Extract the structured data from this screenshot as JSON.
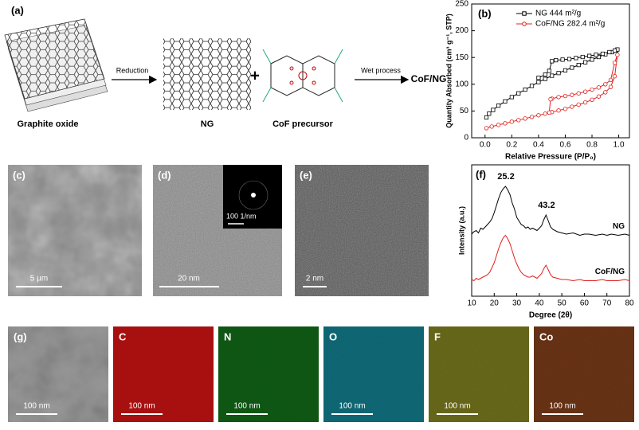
{
  "scheme": {
    "label": "(a)",
    "reactant": "Graphite oxide",
    "step1": "Reduction",
    "intermediate": "NG",
    "plus": "+",
    "precursor": "CoF precursor",
    "step2": "Wet process",
    "product": "CoF/NG"
  },
  "micrographs": [
    {
      "label": "(c)",
      "scale": "5 µm"
    },
    {
      "label": "(d)",
      "scale": "20 nm",
      "inset_scale": "100 1/nm"
    },
    {
      "label": "(e)",
      "scale": "2 nm"
    }
  ],
  "eds_maps": [
    {
      "label": "(g)",
      "scale": "100 nm"
    },
    {
      "label": "C",
      "scale": "100 nm"
    },
    {
      "label": "N",
      "scale": "100 nm"
    },
    {
      "label": "O",
      "scale": "100 nm"
    },
    {
      "label": "F",
      "scale": "100 nm"
    },
    {
      "label": "Co",
      "scale": "100 nm"
    }
  ],
  "chart_data": [
    {
      "type": "line",
      "panel_label": "(b)",
      "xlabel": "Relative Pressure (P/P₀)",
      "ylabel": "Quantity Absorbed (cm³ g⁻¹, STP)",
      "xlim": [
        -0.1,
        1.08
      ],
      "ylim": [
        0,
        250
      ],
      "xticks": [
        {
          "value": 0,
          "label": "0.0"
        },
        {
          "value": 0.2,
          "label": "0.2"
        },
        {
          "value": 0.4,
          "label": "0.4"
        },
        {
          "value": 0.6,
          "label": "0.6"
        },
        {
          "value": 0.8,
          "label": "0.8"
        },
        {
          "value": 1,
          "label": "1.0"
        }
      ],
      "yticks": [
        0,
        50,
        100,
        150,
        200,
        250
      ],
      "legend": "upper right",
      "series": [
        {
          "name": "NG 444 m²/g",
          "color": "#000000",
          "marker": "square",
          "x": [
            0.01,
            0.03,
            0.06,
            0.1,
            0.15,
            0.2,
            0.25,
            0.3,
            0.35,
            0.4,
            0.45,
            0.5,
            0.55,
            0.6,
            0.65,
            0.7,
            0.75,
            0.8,
            0.85,
            0.9,
            0.95,
            0.98,
            0.99,
            0.97,
            0.93,
            0.88,
            0.83,
            0.78,
            0.73,
            0.68,
            0.63,
            0.58,
            0.53,
            0.5,
            0.48,
            0.45,
            0.4
          ],
          "values": [
            38,
            45,
            52,
            60,
            68,
            76,
            83,
            90,
            97,
            104,
            110,
            116,
            121,
            126,
            131,
            136,
            141,
            146,
            151,
            156,
            160,
            163,
            165,
            163,
            160,
            157,
            155,
            153,
            151,
            149,
            147,
            146,
            145,
            143,
            125,
            118,
            112
          ]
        },
        {
          "name": "CoF/NG 282.4 m²/g",
          "color": "#e0201b",
          "marker": "circle",
          "x": [
            0.01,
            0.05,
            0.1,
            0.15,
            0.2,
            0.25,
            0.3,
            0.35,
            0.4,
            0.45,
            0.5,
            0.55,
            0.6,
            0.65,
            0.7,
            0.75,
            0.8,
            0.85,
            0.9,
            0.94,
            0.97,
            0.99,
            0.97,
            0.94,
            0.9,
            0.85,
            0.8,
            0.75,
            0.7,
            0.65,
            0.6,
            0.55,
            0.5,
            0.49,
            0.48
          ],
          "values": [
            18,
            21,
            24,
            27,
            30,
            33,
            36,
            39,
            42,
            45,
            48,
            51,
            54,
            58,
            62,
            66,
            71,
            77,
            85,
            95,
            115,
            155,
            140,
            108,
            100,
            94,
            90,
            86,
            83,
            80,
            78,
            76,
            73,
            72,
            47
          ]
        }
      ]
    },
    {
      "type": "line",
      "panel_label": "(f)",
      "xlabel": "Degree (2θ)",
      "ylabel": "Intensity (a.u.)",
      "xlim": [
        10,
        80
      ],
      "ylim": [
        0,
        110
      ],
      "xticks": [
        10,
        20,
        30,
        40,
        50,
        60,
        70,
        80
      ],
      "legend": "inline",
      "annotations": [
        {
          "text": "25.2",
          "x": 25.2
        },
        {
          "text": "43.2",
          "x": 43.2
        }
      ],
      "x": [
        10,
        11,
        12,
        13,
        14,
        15,
        16,
        17,
        18,
        19,
        20,
        21,
        22,
        23,
        24,
        25,
        26,
        27,
        28,
        29,
        30,
        31,
        32,
        33,
        34,
        35,
        36,
        37,
        38,
        39,
        40,
        41,
        42,
        43,
        44,
        45,
        46,
        48,
        50,
        52,
        55,
        58,
        60,
        62,
        65,
        68,
        70,
        72,
        75,
        78,
        80
      ],
      "series": [
        {
          "name": "NG",
          "color": "#000000",
          "values": [
            52,
            54,
            55,
            53,
            57,
            56,
            58,
            60,
            62,
            65,
            70,
            76,
            82,
            87,
            90,
            92,
            89,
            85,
            78,
            73,
            66,
            63,
            60,
            59,
            57,
            58,
            56,
            57,
            56,
            55,
            57,
            59,
            64,
            68,
            63,
            58,
            56,
            54,
            53,
            52,
            53,
            51,
            52,
            52,
            51,
            52,
            51,
            52,
            51,
            52,
            51
          ]
        },
        {
          "name": "CoF/NG",
          "color": "#e0201b",
          "values": [
            14,
            13,
            15,
            14,
            15,
            16,
            17,
            18,
            20,
            24,
            28,
            34,
            40,
            45,
            49,
            51,
            48,
            44,
            38,
            32,
            27,
            23,
            20,
            18,
            17,
            16,
            16,
            17,
            16,
            15,
            17,
            19,
            23,
            26,
            22,
            18,
            16,
            15,
            14,
            14,
            13,
            14,
            13,
            13,
            13,
            14,
            13,
            13,
            13,
            14,
            13
          ]
        }
      ]
    }
  ]
}
